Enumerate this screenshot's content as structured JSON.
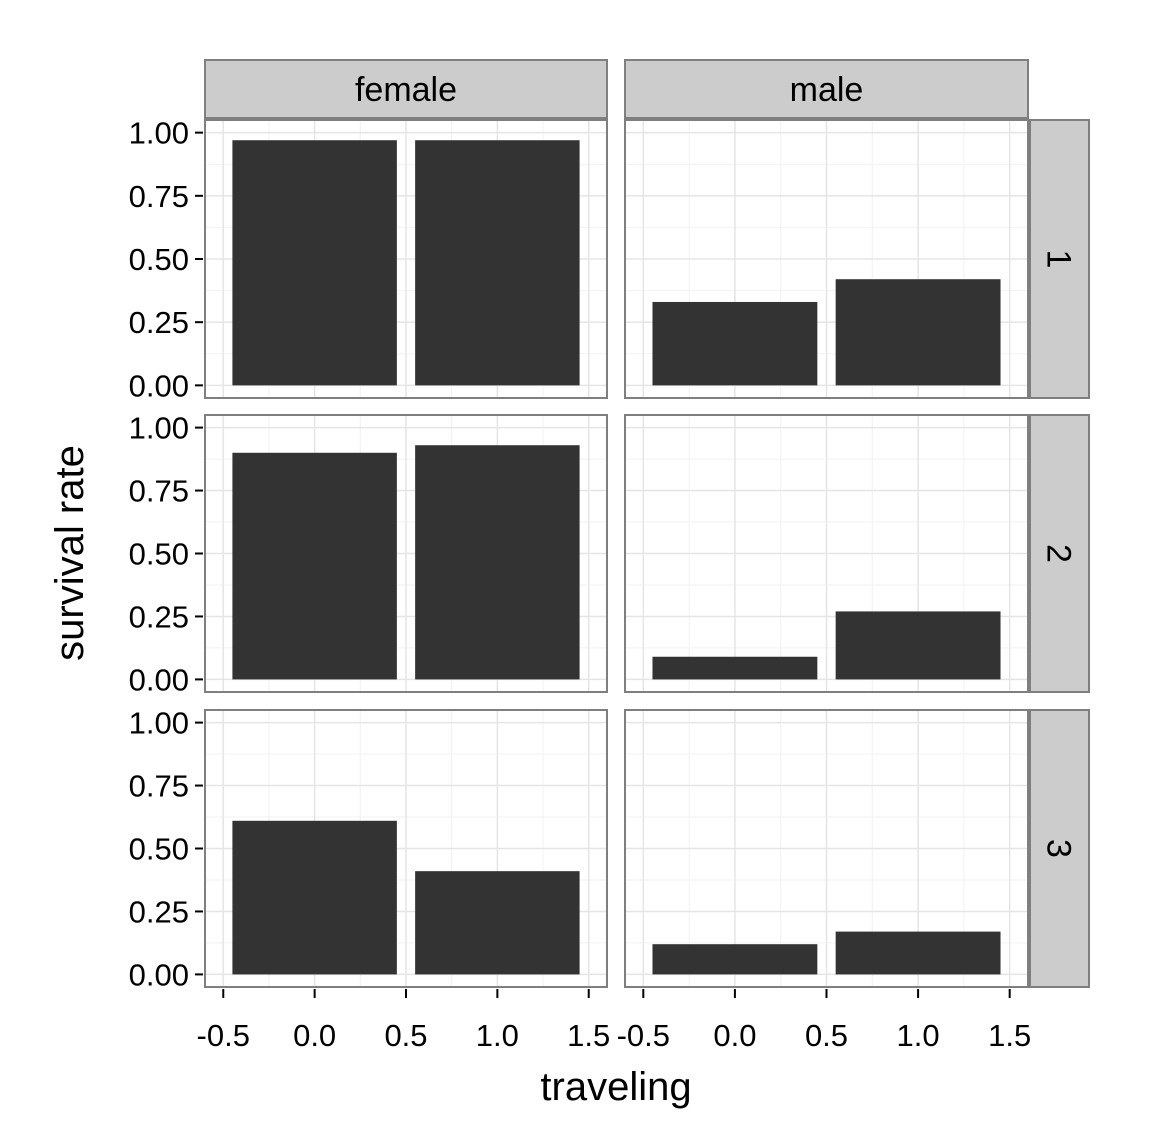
{
  "chart_data": {
    "type": "bar",
    "layout": "facet_grid",
    "xlabel": "traveling",
    "ylabel": "survival rate",
    "col_facets": [
      "female",
      "male"
    ],
    "row_facets": [
      "1",
      "2",
      "3"
    ],
    "x_categories": [
      0,
      1
    ],
    "xlim": [
      -0.5,
      1.5
    ],
    "ylim": [
      0,
      1
    ],
    "x_ticks": [
      "-0.5",
      "0.0",
      "0.5",
      "1.0",
      "1.5"
    ],
    "y_ticks": [
      "0.00",
      "0.25",
      "0.50",
      "0.75",
      "1.00"
    ],
    "grid": true,
    "bar_color": "#333333",
    "panel_background": "#ffffff",
    "strip_color": "#cccccc",
    "panels": [
      {
        "row": "1",
        "col": "female",
        "x": [
          0,
          1
        ],
        "values": [
          0.97,
          0.97
        ]
      },
      {
        "row": "1",
        "col": "male",
        "x": [
          0,
          1
        ],
        "values": [
          0.33,
          0.42
        ]
      },
      {
        "row": "2",
        "col": "female",
        "x": [
          0,
          1
        ],
        "values": [
          0.9,
          0.93
        ]
      },
      {
        "row": "2",
        "col": "male",
        "x": [
          0,
          1
        ],
        "values": [
          0.09,
          0.27
        ]
      },
      {
        "row": "3",
        "col": "female",
        "x": [
          0,
          1
        ],
        "values": [
          0.61,
          0.41
        ]
      },
      {
        "row": "3",
        "col": "male",
        "x": [
          0,
          1
        ],
        "values": [
          0.12,
          0.17
        ]
      }
    ]
  }
}
